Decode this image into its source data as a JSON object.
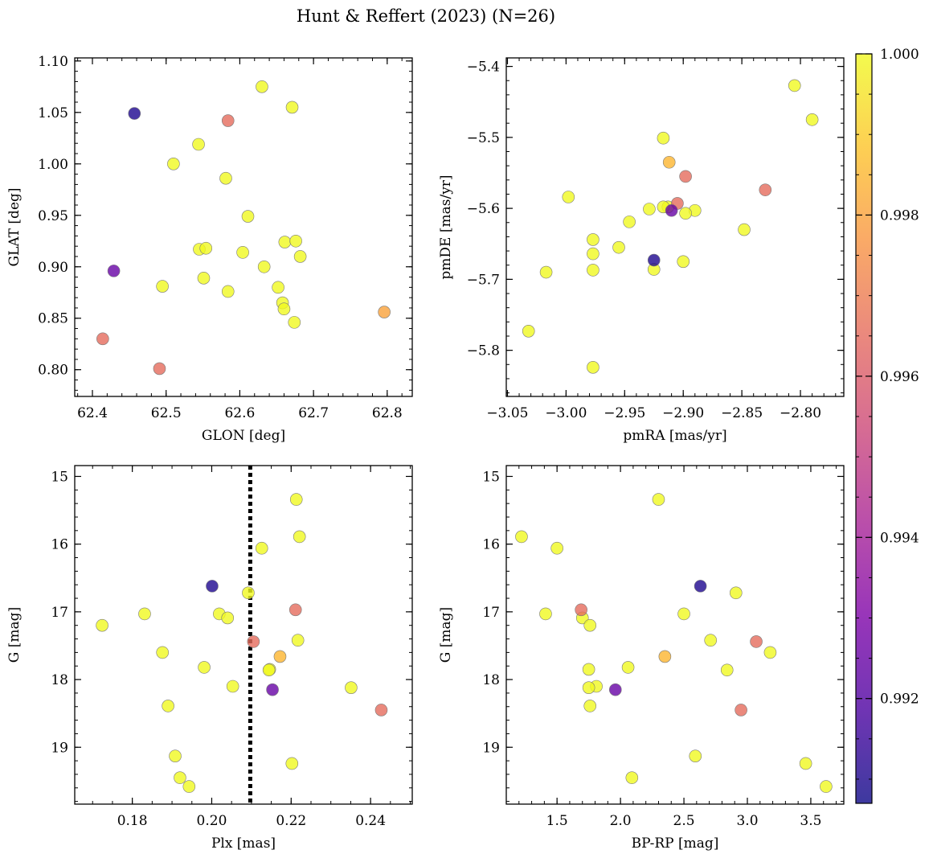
{
  "figure": {
    "title": "Hunt & Reffert (2023) (N=26)"
  },
  "colors": {
    "colormap": "plasma",
    "scatter_edge": "#7a7a7a",
    "member_line": "#000000"
  },
  "colorbar": {
    "min": 0.9907,
    "max": 1.0,
    "ticks": [
      0.992,
      0.994,
      0.996,
      0.998,
      1.0
    ],
    "tick_labels": [
      "0.992",
      "0.994",
      "0.996",
      "0.998",
      "1.000"
    ]
  },
  "chart_data": [
    {
      "type": "scatter",
      "id": "glon-glat",
      "xlabel": "GLON [deg]",
      "ylabel": "GLAT [deg]",
      "xlim": [
        62.376,
        62.834
      ],
      "ylim": [
        0.774,
        1.103
      ],
      "xticks": [
        62.4,
        62.5,
        62.6,
        62.7,
        62.8
      ],
      "xtick_labels": [
        "62.4",
        "62.5",
        "62.6",
        "62.7",
        "62.8"
      ],
      "yticks": [
        0.8,
        0.85,
        0.9,
        0.95,
        1.0,
        1.05,
        1.1
      ],
      "ytick_labels": [
        "0.80",
        "0.85",
        "0.90",
        "0.95",
        "1.00",
        "1.05",
        "1.10"
      ],
      "x_minor_step": 0.02,
      "y_minor_step": 0.01,
      "y_inverted": false,
      "points": [
        [
          62.63,
          1.075,
          1.0
        ],
        [
          62.671,
          1.055,
          1.0
        ],
        [
          62.457,
          1.049,
          0.991
        ],
        [
          62.584,
          1.042,
          0.9965
        ],
        [
          62.544,
          1.019,
          1.0
        ],
        [
          62.51,
          1.0,
          1.0
        ],
        [
          62.581,
          0.986,
          1.0
        ],
        [
          62.611,
          0.949,
          1.0
        ],
        [
          62.661,
          0.924,
          1.0
        ],
        [
          62.676,
          0.925,
          1.0
        ],
        [
          62.545,
          0.917,
          1.0
        ],
        [
          62.554,
          0.918,
          1.0
        ],
        [
          62.604,
          0.914,
          1.0
        ],
        [
          62.682,
          0.91,
          1.0
        ],
        [
          62.633,
          0.9,
          1.0
        ],
        [
          62.429,
          0.896,
          0.9925
        ],
        [
          62.551,
          0.889,
          1.0
        ],
        [
          62.495,
          0.881,
          1.0
        ],
        [
          62.652,
          0.88,
          1.0
        ],
        [
          62.584,
          0.876,
          1.0
        ],
        [
          62.658,
          0.865,
          1.0
        ],
        [
          62.66,
          0.859,
          1.0
        ],
        [
          62.796,
          0.856,
          0.998
        ],
        [
          62.674,
          0.846,
          1.0
        ],
        [
          62.414,
          0.83,
          0.9965
        ],
        [
          62.491,
          0.801,
          0.9965
        ]
      ]
    },
    {
      "type": "scatter",
      "id": "pm",
      "xlabel": "pmRA [mas/yr]",
      "ylabel": "pmDE [mas/yr]",
      "xlim": [
        -3.051,
        -2.763
      ],
      "ylim": [
        -5.865,
        -5.388
      ],
      "xticks": [
        -3.05,
        -3.0,
        -2.95,
        -2.9,
        -2.85,
        -2.8
      ],
      "xtick_labels": [
        "−3.05",
        "−3.00",
        "−2.95",
        "−2.90",
        "−2.85",
        "−2.80"
      ],
      "yticks": [
        -5.8,
        -5.7,
        -5.6,
        -5.5,
        -5.4
      ],
      "ytick_labels": [
        "−5.8",
        "−5.7",
        "−5.6",
        "−5.5",
        "−5.4"
      ],
      "x_minor_step": 0.01,
      "y_minor_step": 0.02,
      "y_inverted": false,
      "points": [
        [
          -2.805,
          -5.427,
          1.0
        ],
        [
          -2.79,
          -5.475,
          1.0
        ],
        [
          -2.917,
          -5.501,
          1.0
        ],
        [
          -2.912,
          -5.535,
          0.9985
        ],
        [
          -2.898,
          -5.555,
          0.9965
        ],
        [
          -2.83,
          -5.574,
          0.9965
        ],
        [
          -2.998,
          -5.584,
          1.0
        ],
        [
          -2.905,
          -5.593,
          0.9965
        ],
        [
          -2.913,
          -5.598,
          1.0
        ],
        [
          -2.917,
          -5.598,
          1.0
        ],
        [
          -2.91,
          -5.603,
          0.9925
        ],
        [
          -2.929,
          -5.601,
          1.0
        ],
        [
          -2.89,
          -5.603,
          1.0
        ],
        [
          -2.898,
          -5.607,
          1.0
        ],
        [
          -2.946,
          -5.619,
          1.0
        ],
        [
          -2.848,
          -5.63,
          1.0
        ],
        [
          -2.977,
          -5.644,
          1.0
        ],
        [
          -2.955,
          -5.655,
          1.0
        ],
        [
          -2.977,
          -5.664,
          1.0
        ],
        [
          -2.925,
          -5.673,
          0.991
        ],
        [
          -2.9,
          -5.675,
          1.0
        ],
        [
          -2.925,
          -5.686,
          1.0
        ],
        [
          -2.977,
          -5.687,
          1.0
        ],
        [
          -3.017,
          -5.69,
          1.0
        ],
        [
          -3.032,
          -5.773,
          1.0
        ],
        [
          -2.977,
          -5.824,
          1.0
        ]
      ]
    },
    {
      "type": "scatter",
      "id": "plx-g",
      "xlabel": "Plx [mas]",
      "ylabel": "G [mag]",
      "xlim": [
        0.1655,
        0.2505
      ],
      "ylim": [
        14.84,
        19.84
      ],
      "xticks": [
        0.18,
        0.2,
        0.22,
        0.24
      ],
      "xtick_labels": [
        "0.18",
        "0.20",
        "0.22",
        "0.24"
      ],
      "yticks": [
        15,
        16,
        17,
        18,
        19
      ],
      "ytick_labels": [
        "15",
        "16",
        "17",
        "18",
        "19"
      ],
      "x_minor_step": 0.005,
      "y_minor_step": 0.2,
      "y_inverted": true,
      "vline": 0.2097,
      "points": [
        [
          0.2213,
          15.34,
          1.0
        ],
        [
          0.2221,
          15.89,
          1.0
        ],
        [
          0.2126,
          16.06,
          1.0
        ],
        [
          0.2001,
          16.62,
          0.991
        ],
        [
          0.2092,
          16.72,
          1.0
        ],
        [
          0.2211,
          16.97,
          0.9965
        ],
        [
          0.2019,
          17.03,
          1.0
        ],
        [
          0.1831,
          17.03,
          1.0
        ],
        [
          0.204,
          17.09,
          1.0
        ],
        [
          0.1724,
          17.2,
          1.0
        ],
        [
          0.2217,
          17.42,
          1.0
        ],
        [
          0.2105,
          17.44,
          0.9965
        ],
        [
          0.1876,
          17.6,
          1.0
        ],
        [
          0.2172,
          17.66,
          0.9985
        ],
        [
          0.1981,
          17.82,
          1.0
        ],
        [
          0.2146,
          17.85,
          1.0
        ],
        [
          0.2144,
          17.86,
          1.0
        ],
        [
          0.2053,
          18.1,
          1.0
        ],
        [
          0.2351,
          18.12,
          1.0
        ],
        [
          0.2153,
          18.15,
          0.9925
        ],
        [
          0.189,
          18.39,
          1.0
        ],
        [
          0.2427,
          18.45,
          0.9965
        ],
        [
          0.1908,
          19.13,
          1.0
        ],
        [
          0.2202,
          19.24,
          1.0
        ],
        [
          0.192,
          19.45,
          1.0
        ],
        [
          0.1943,
          19.58,
          1.0
        ]
      ]
    },
    {
      "type": "scatter",
      "id": "cmd",
      "xlabel": "BP-RP [mag]",
      "ylabel": "G [mag]",
      "xlim": [
        1.1,
        3.76
      ],
      "ylim": [
        14.84,
        19.84
      ],
      "xticks": [
        1.5,
        2.0,
        2.5,
        3.0,
        3.5
      ],
      "xtick_labels": [
        "1.5",
        "2.0",
        "2.5",
        "3.0",
        "3.5"
      ],
      "x_minor_step": 0.1,
      "yticks": [
        15,
        16,
        17,
        18,
        19
      ],
      "ytick_labels": [
        "15",
        "16",
        "17",
        "18",
        "19"
      ],
      "y_minor_step": 0.2,
      "y_inverted": true,
      "points": [
        [
          2.3,
          15.34,
          1.0
        ],
        [
          1.22,
          15.89,
          1.0
        ],
        [
          1.5,
          16.06,
          1.0
        ],
        [
          2.63,
          16.62,
          0.991
        ],
        [
          2.91,
          16.72,
          1.0
        ],
        [
          1.69,
          16.97,
          0.9965
        ],
        [
          2.5,
          17.03,
          1.0
        ],
        [
          1.41,
          17.03,
          1.0
        ],
        [
          1.7,
          17.09,
          1.0
        ],
        [
          1.76,
          17.2,
          1.0
        ],
        [
          2.71,
          17.42,
          1.0
        ],
        [
          3.07,
          17.44,
          0.9965
        ],
        [
          3.18,
          17.6,
          1.0
        ],
        [
          2.35,
          17.66,
          0.9985
        ],
        [
          2.06,
          17.82,
          1.0
        ],
        [
          1.75,
          17.85,
          1.0
        ],
        [
          2.84,
          17.86,
          1.0
        ],
        [
          1.81,
          18.1,
          1.0
        ],
        [
          1.75,
          18.12,
          1.0
        ],
        [
          1.96,
          18.15,
          0.9925
        ],
        [
          1.76,
          18.39,
          1.0
        ],
        [
          2.95,
          18.45,
          0.9965
        ],
        [
          2.59,
          19.13,
          1.0
        ],
        [
          3.46,
          19.24,
          1.0
        ],
        [
          2.09,
          19.45,
          1.0
        ],
        [
          3.62,
          19.58,
          1.0
        ]
      ]
    }
  ]
}
